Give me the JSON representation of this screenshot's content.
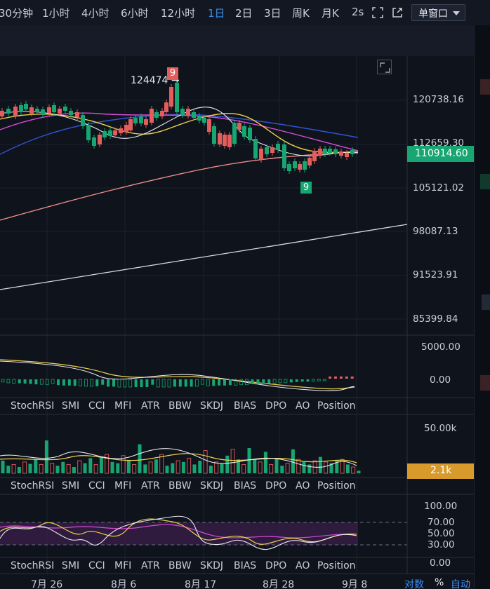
{
  "toolbar": {
    "timeframes": [
      "30分钟",
      "1小时",
      "4小时",
      "6小时",
      "12小时",
      "1日",
      "2日",
      "3日",
      "周K",
      "月K",
      "2s"
    ],
    "active_timeframe": "1日",
    "window_mode": "单窗口"
  },
  "main_chart": {
    "price_axis": [
      "120738.16",
      "112659.30",
      "105121.02",
      "98087.13",
      "91523.91",
      "85399.84"
    ],
    "current_price": "110914.60",
    "high_marker": "124474",
    "td_count_top": "9",
    "td_count_bottom": "9"
  },
  "macd_pane": {
    "axis": [
      "5000.00",
      "0.00"
    ]
  },
  "volume_pane": {
    "axis": [
      "50.00k"
    ],
    "current_volume": "2.1k"
  },
  "rsi_pane": {
    "axis": [
      "100.00",
      "70.00",
      "50.00",
      "30.00",
      "0.00"
    ]
  },
  "indicator_tabs": [
    "StochRSI",
    "SMI",
    "CCI",
    "MFI",
    "ATR",
    "BBW",
    "SKDJ",
    "BIAS",
    "DPO",
    "AO",
    "Position"
  ],
  "x_axis": [
    "7月 26",
    "8月 6",
    "8月 17",
    "8月 28",
    "9月 8"
  ],
  "footer": {
    "log_label": "对数",
    "percent_label": "%",
    "auto_label": "自动"
  },
  "colors": {
    "up": "#17a572",
    "down": "#e35d5d",
    "accent": "#3b8cf0",
    "volume_badge": "#d89b2b",
    "background": "#0f131c"
  }
}
